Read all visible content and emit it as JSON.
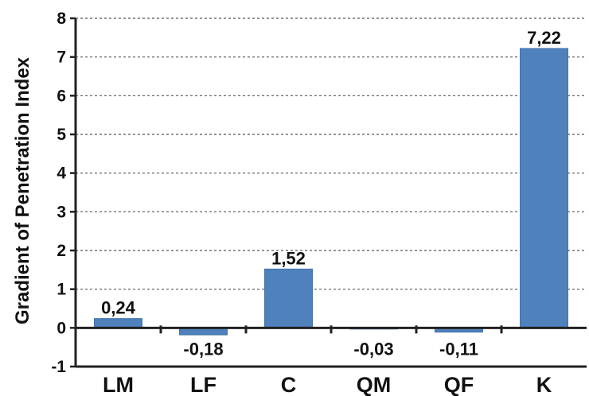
{
  "chart_data": {
    "type": "bar",
    "title": "",
    "xlabel": "",
    "ylabel": "Gradient of Penetration Index",
    "categories": [
      "LM",
      "LF",
      "C",
      "QM",
      "QF",
      "K"
    ],
    "values": [
      0.24,
      -0.18,
      1.52,
      -0.03,
      -0.11,
      7.22
    ],
    "data_labels": [
      "0,24",
      "-0,18",
      "1,52",
      "-0,03",
      "-0,11",
      "7,22"
    ],
    "ylim": [
      -1,
      8
    ],
    "yticks": [
      -1,
      0,
      1,
      2,
      3,
      4,
      5,
      6,
      7,
      8
    ],
    "grid": "horizontal dashed",
    "legend": "none",
    "colors": {
      "bar": "#4f81bd",
      "bar_edge": "#3f6fa8",
      "axis": "#222222",
      "grid": "#555555"
    }
  }
}
